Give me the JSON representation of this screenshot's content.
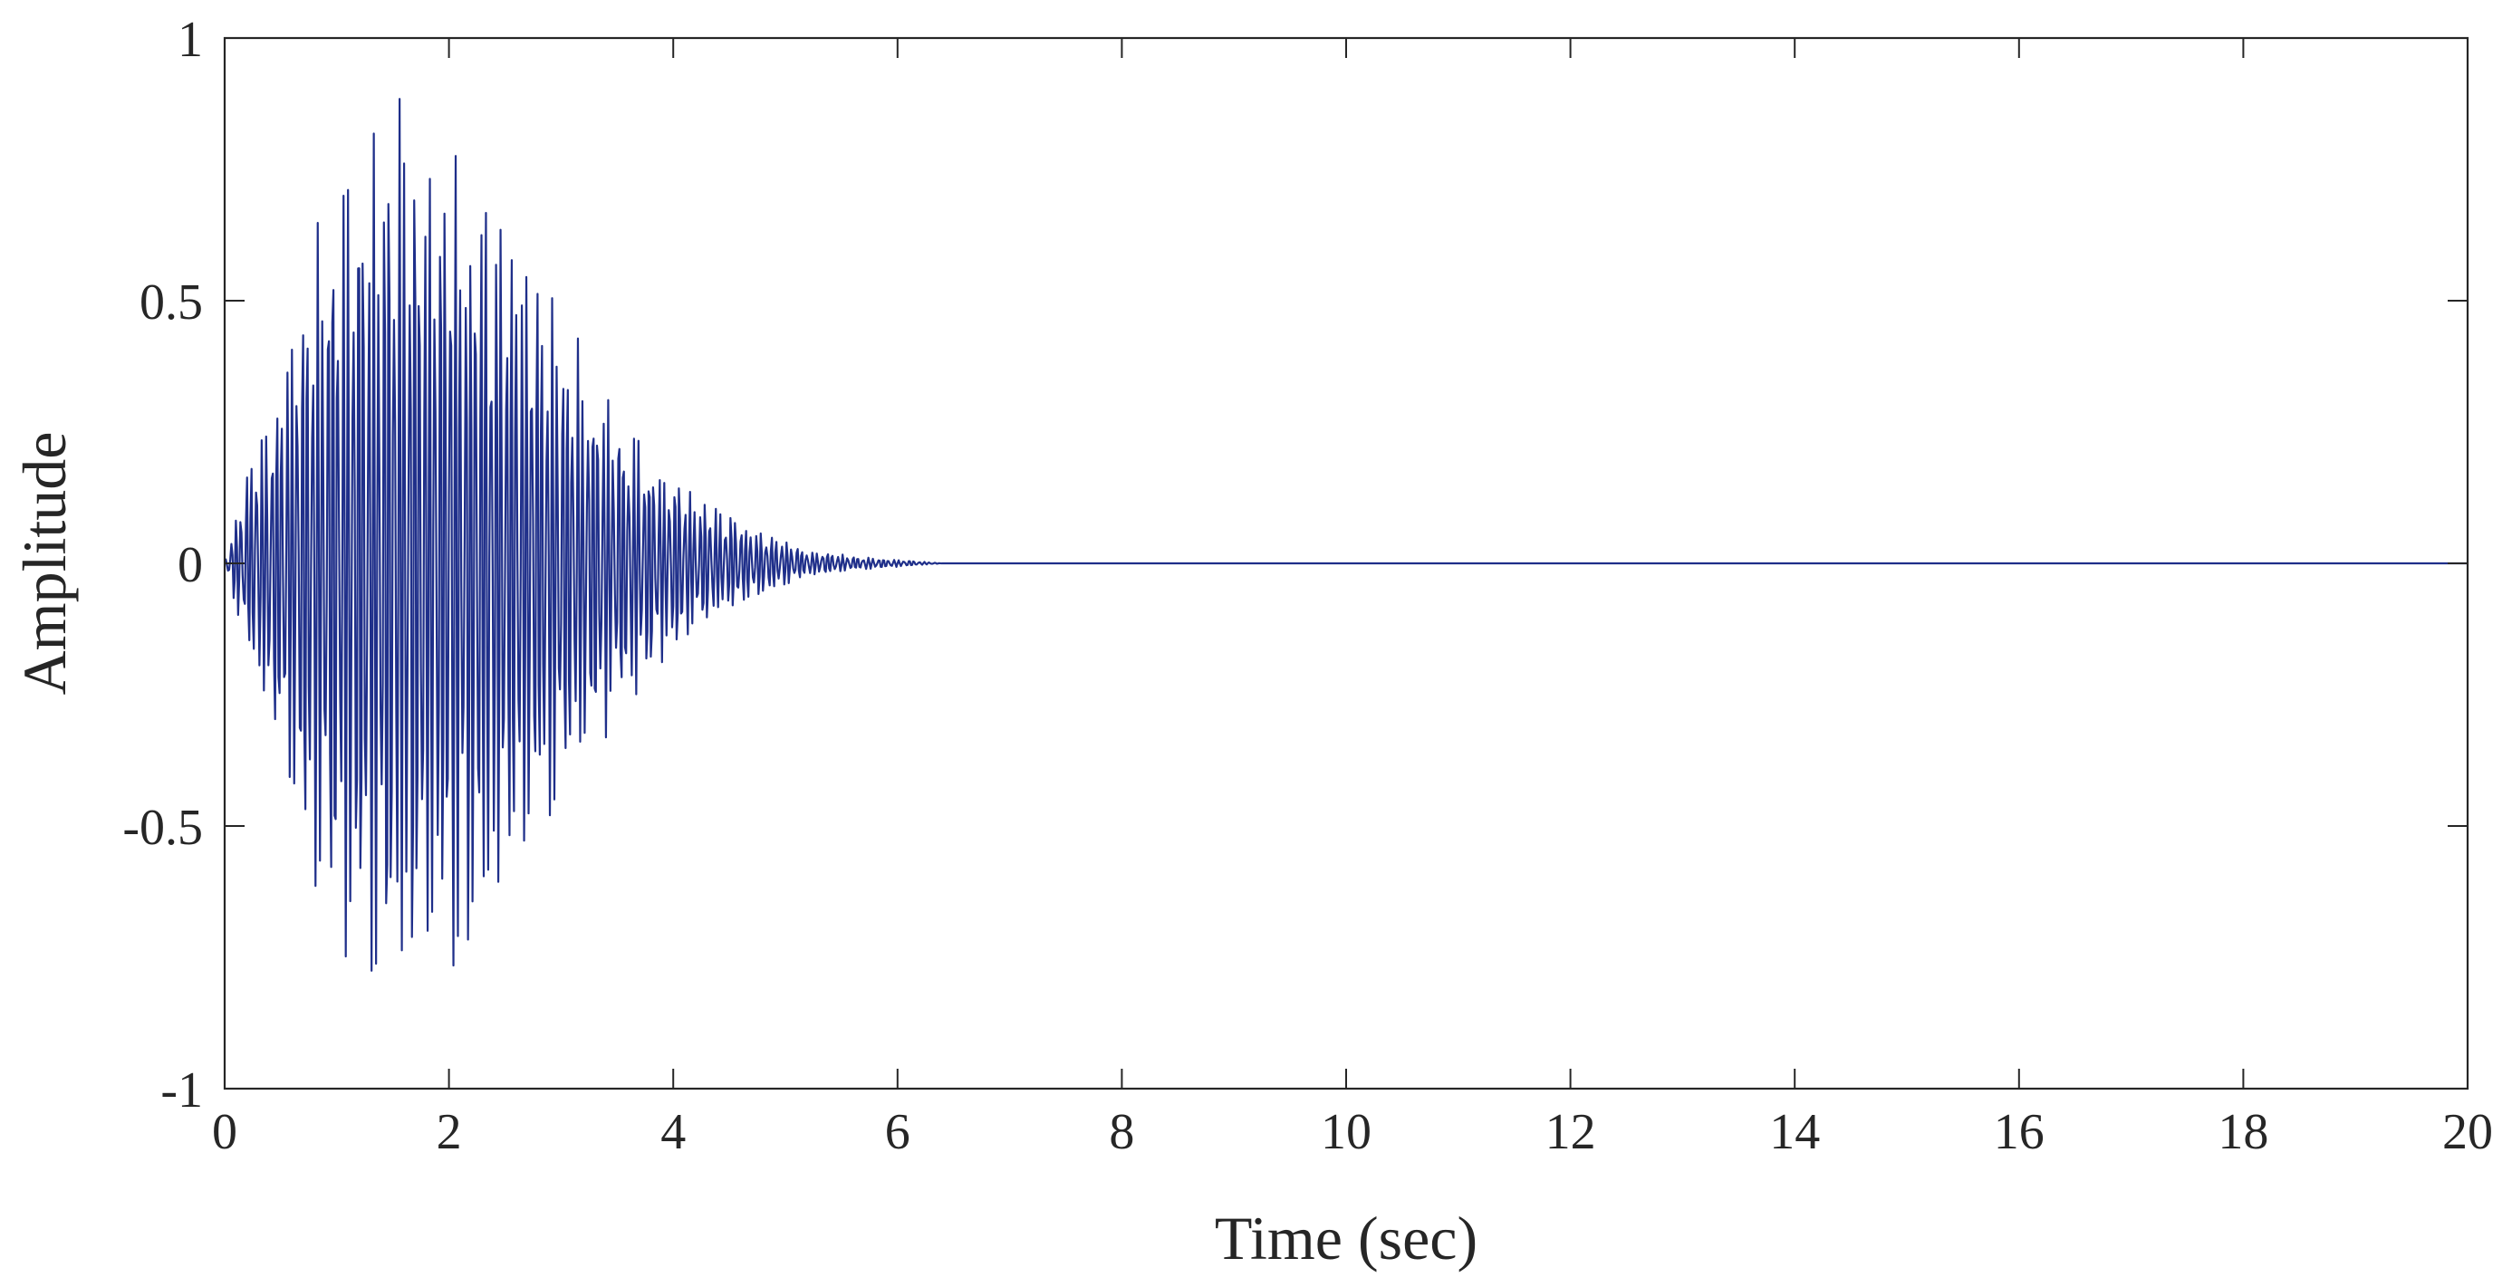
{
  "chart_data": {
    "type": "line",
    "title": "",
    "xlabel": "Time (sec)",
    "ylabel": "Amplitude",
    "xlim": [
      0,
      20
    ],
    "ylim": [
      -1,
      1
    ],
    "xticks": [
      0,
      2,
      4,
      6,
      8,
      10,
      12,
      14,
      16,
      18,
      20
    ],
    "yticks": [
      -1,
      -0.5,
      0,
      0.5,
      1
    ],
    "xtick_labels": [
      "0",
      "2",
      "4",
      "6",
      "8",
      "10",
      "12",
      "14",
      "16",
      "18",
      "20"
    ],
    "ytick_labels": [
      "-1",
      "-0.5",
      "0",
      "0.5",
      "1"
    ],
    "grid": false,
    "line_color": "#1f2f8a",
    "series": [
      {
        "name": "",
        "description_of_shape": "",
        "sample_rate_hz": 100,
        "envelope": {
          "t": [
            0,
            0.2,
            0.5,
            0.8,
            1.1,
            1.4,
            1.6,
            1.8,
            2.1,
            2.4,
            2.8,
            3.2,
            3.6,
            4.0,
            4.4,
            4.8,
            5.2,
            5.6,
            6.0,
            6.4,
            20
          ],
          "peak": [
            0,
            0.2,
            0.45,
            0.7,
            0.85,
            0.94,
            0.95,
            0.93,
            0.88,
            0.8,
            0.6,
            0.45,
            0.3,
            0.2,
            0.12,
            0.07,
            0.03,
            0.015,
            0.008,
            0,
            0
          ]
        },
        "dominant_frequency_hz": 22
      }
    ]
  }
}
